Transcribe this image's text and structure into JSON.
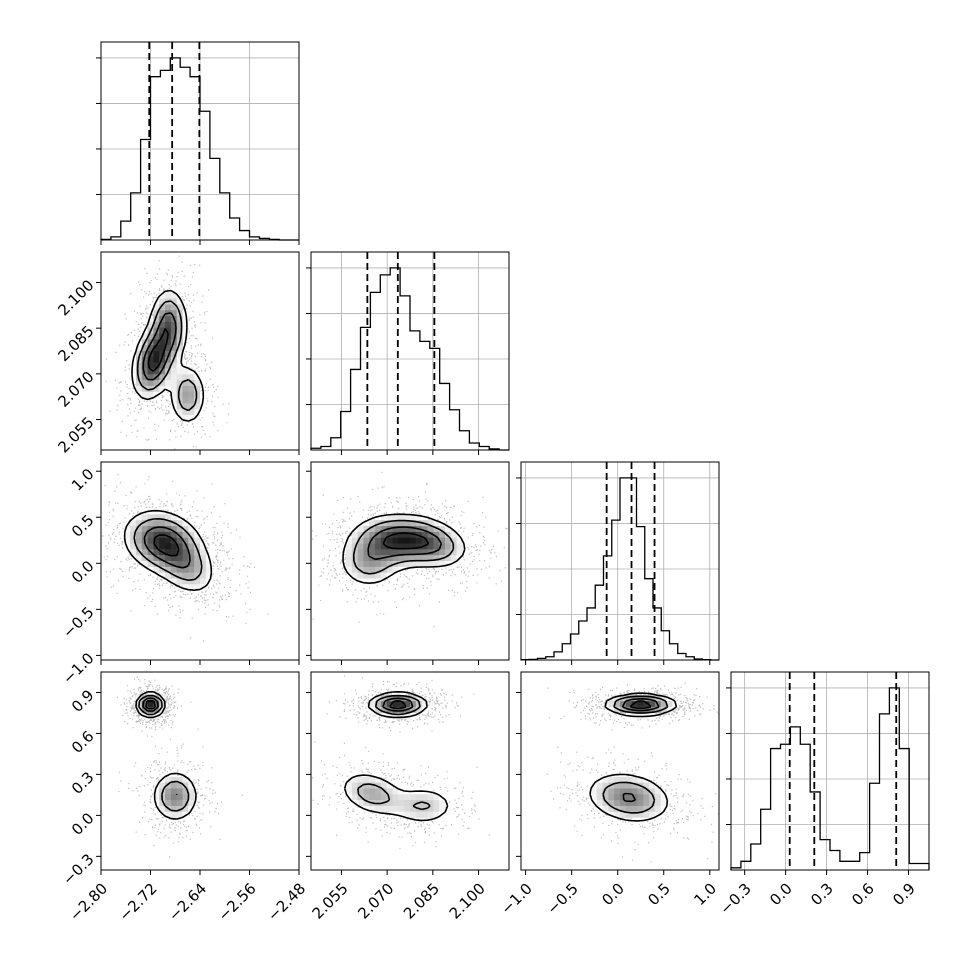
{
  "chart_data": {
    "type": "corner",
    "parameters": [
      {
        "range": [
          -2.8,
          -2.48
        ],
        "ticks": [
          -2.8,
          -2.72,
          -2.64,
          -2.56,
          -2.48
        ],
        "tick_labels": [
          "−2.80",
          "−2.72",
          "−2.64",
          "−2.56",
          "−2.48"
        ],
        "quantiles": [
          -2.722,
          -2.685,
          -2.641
        ]
      },
      {
        "range": [
          2.045,
          2.11
        ],
        "ticks": [
          2.055,
          2.07,
          2.085,
          2.1
        ],
        "tick_labels": [
          "2.055",
          "2.070",
          "2.085",
          "2.100"
        ],
        "quantiles": [
          2.0635,
          2.0735,
          2.0855
        ]
      },
      {
        "range": [
          -1.05,
          1.1
        ],
        "ticks": [
          -1.0,
          -0.5,
          0.0,
          0.5,
          1.0
        ],
        "tick_labels": [
          "−1.0",
          "−0.5",
          "0.0",
          "0.5",
          "1.0"
        ],
        "quantiles": [
          -0.12,
          0.15,
          0.4
        ]
      },
      {
        "range": [
          -0.4,
          1.05
        ],
        "ticks": [
          -0.3,
          0.0,
          0.3,
          0.6,
          0.9
        ],
        "tick_labels": [
          "−0.3",
          "0.0",
          "0.3",
          "0.6",
          "0.9"
        ],
        "quantiles": [
          0.03,
          0.21,
          0.81
        ]
      }
    ],
    "histograms": [
      {
        "bins": 20,
        "counts": [
          2,
          10,
          60,
          150,
          320,
          520,
          540,
          580,
          550,
          520,
          410,
          260,
          150,
          70,
          30,
          10,
          5,
          2,
          0,
          0
        ]
      },
      {
        "bins": 20,
        "counts": [
          5,
          10,
          35,
          110,
          230,
          350,
          450,
          500,
          520,
          440,
          340,
          310,
          290,
          190,
          115,
          55,
          20,
          10,
          3,
          0
        ]
      },
      {
        "bins": 24,
        "counts": [
          1,
          2,
          5,
          10,
          25,
          50,
          80,
          120,
          160,
          230,
          320,
          430,
          560,
          560,
          410,
          250,
          160,
          90,
          50,
          20,
          10,
          3,
          1,
          0
        ]
      },
      {
        "bins": 20,
        "counts": [
          5,
          20,
          60,
          140,
          280,
          290,
          330,
          290,
          180,
          70,
          45,
          20,
          20,
          40,
          200,
          360,
          420,
          280,
          15,
          15
        ]
      }
    ],
    "pairs": [
      {
        "x": 0,
        "y": 1,
        "blobs": [
          {
            "cx": -2.715,
            "cy": 2.074,
            "sx": 0.018,
            "sy": 0.0065,
            "rho": 0.3,
            "w": 1.0
          },
          {
            "cx": -2.69,
            "cy": 2.086,
            "sx": 0.016,
            "sy": 0.0065,
            "rho": 0.0,
            "w": 0.75
          },
          {
            "cx": -2.66,
            "cy": 2.063,
            "sx": 0.016,
            "sy": 0.0055,
            "rho": 0.0,
            "w": 0.55
          }
        ]
      },
      {
        "x": 0,
        "y": 2,
        "blobs": [
          {
            "cx": -2.7,
            "cy": 0.23,
            "sx": 0.033,
            "sy": 0.18,
            "rho": -0.2,
            "w": 1.0
          },
          {
            "cx": -2.66,
            "cy": -0.05,
            "sx": 0.026,
            "sy": 0.17,
            "rho": -0.3,
            "w": 0.45
          }
        ]
      },
      {
        "x": 1,
        "y": 2,
        "blobs": [
          {
            "cx": 2.073,
            "cy": 0.25,
            "sx": 0.008,
            "sy": 0.15,
            "rho": 0.0,
            "w": 1.0
          },
          {
            "cx": 2.064,
            "cy": 0.0,
            "sx": 0.0055,
            "sy": 0.15,
            "rho": 0.0,
            "w": 0.5
          },
          {
            "cx": 2.085,
            "cy": 0.2,
            "sx": 0.0065,
            "sy": 0.14,
            "rho": -0.2,
            "w": 0.6
          }
        ]
      },
      {
        "x": 0,
        "y": 3,
        "blobs": [
          {
            "cx": -2.72,
            "cy": 0.81,
            "sx": 0.012,
            "sy": 0.045,
            "rho": 0.0,
            "w": 1.0
          },
          {
            "cx": -2.68,
            "cy": 0.14,
            "sx": 0.02,
            "sy": 0.1,
            "rho": 0.0,
            "w": 0.55
          }
        ]
      },
      {
        "x": 1,
        "y": 3,
        "blobs": [
          {
            "cx": 2.0735,
            "cy": 0.81,
            "sx": 0.005,
            "sy": 0.045,
            "rho": 0.0,
            "w": 1.0
          },
          {
            "cx": 2.065,
            "cy": 0.16,
            "sx": 0.006,
            "sy": 0.09,
            "rho": -0.3,
            "w": 0.45
          },
          {
            "cx": 2.082,
            "cy": 0.07,
            "sx": 0.006,
            "sy": 0.08,
            "rho": 0.0,
            "w": 0.35
          }
        ]
      },
      {
        "x": 2,
        "y": 3,
        "blobs": [
          {
            "cx": 0.25,
            "cy": 0.81,
            "sx": 0.2,
            "sy": 0.04,
            "rho": 0.0,
            "w": 1.0
          },
          {
            "cx": 0.12,
            "cy": 0.13,
            "sx": 0.25,
            "sy": 0.1,
            "rho": -0.2,
            "w": 0.6
          }
        ]
      }
    ],
    "contour_levels": [
      0.16,
      0.35,
      0.62,
      0.86
    ]
  }
}
